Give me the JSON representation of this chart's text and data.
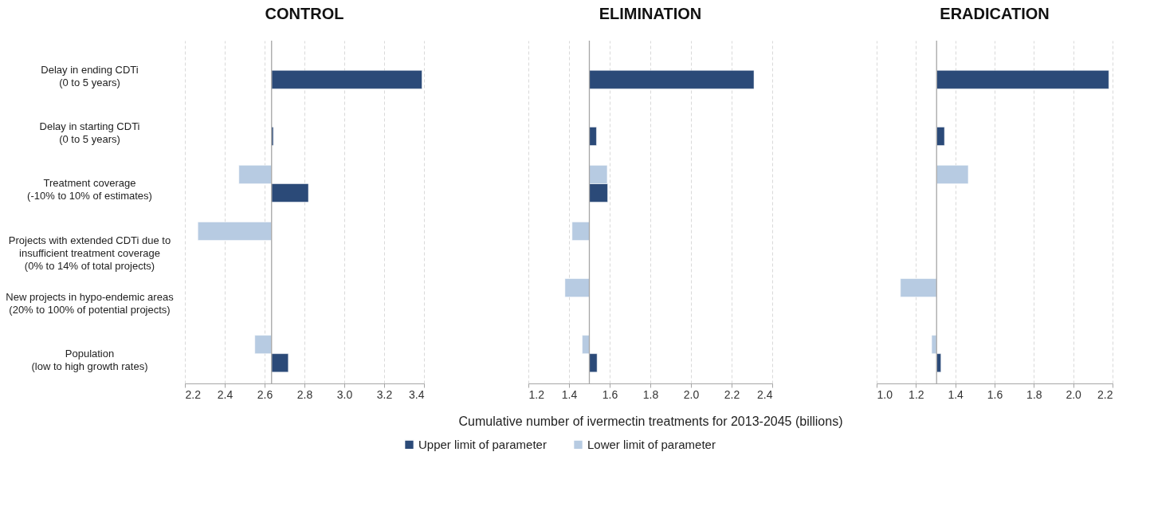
{
  "chart_data": [
    {
      "type": "bar",
      "orientation": "horizontal",
      "title": "CONTROL",
      "categories": [
        "Delay in ending CDTi\n(0 to 5 years)",
        "Delay in starting CDTi\n(0 to 5 years)",
        "Treatment coverage\n(-10% to 10% of estimates)",
        "Projects with extended CDTi due to\ninsufficient treatment coverage\n(0% to 14% of total projects)",
        "New projects in hypo-endemic areas\n(20% to 100% of potential projects)",
        "Population\n(low to high growth rates)"
      ],
      "series": [
        {
          "name": "Upper limit of parameter",
          "color": "#2b4a78",
          "values": [
            0.755,
            0.009,
            0.185,
            null,
            null,
            0.084
          ],
          "base": [
            2.635,
            2.635,
            2.635,
            null,
            null,
            2.635
          ]
        },
        {
          "name": "Lower limit of parameter",
          "color": "#b7cbe2",
          "values": [
            null,
            null,
            -0.164,
            -0.37,
            null,
            -0.084
          ],
          "base": [
            null,
            null,
            2.635,
            2.635,
            null,
            2.635
          ]
        }
      ],
      "xlim": [
        2.2,
        3.4
      ],
      "xticks": [
        {
          "value": 2.2,
          "label": "2.2"
        },
        {
          "value": 2.4,
          "label": "2.4"
        },
        {
          "value": 2.6,
          "label": "2.6"
        },
        {
          "value": 2.8,
          "label": "2.8"
        },
        {
          "value": 3.0,
          "label": "3.0"
        },
        {
          "value": 3.2,
          "label": "3.2"
        },
        {
          "value": 3.4,
          "label": "3.4"
        }
      ],
      "ref_lines": [
        {
          "axis": "x",
          "value": 2.635,
          "color": "#a6a6a6"
        }
      ],
      "grid": "x",
      "legend": "bottom"
    },
    {
      "type": "bar",
      "orientation": "horizontal",
      "title": "ELIMINATION",
      "xlabel": "Cumulative number of ivermectin treatments for 2013-2045 (billions)",
      "categories": [
        "Delay in ending CDTi\n(0 to 5 years)",
        "Delay in starting CDTi\n(0 to 5 years)",
        "Treatment coverage\n(-10% to 10% of estimates)",
        "Projects with extended CDTi due to\ninsufficient treatment coverage\n(0% to 14% of total projects)",
        "New projects in hypo-endemic areas\n(20% to 100% of potential projects)",
        "Population\n(low to high growth rates)"
      ],
      "series": [
        {
          "name": "Upper limit of parameter",
          "color": "#2b4a78",
          "values": [
            0.81,
            0.035,
            0.09,
            null,
            null,
            0.038
          ],
          "base": [
            1.5,
            1.5,
            1.5,
            null,
            null,
            1.5
          ]
        },
        {
          "name": "Lower limit of parameter",
          "color": "#b7cbe2",
          "values": [
            null,
            null,
            0.088,
            -0.085,
            -0.12,
            -0.035
          ],
          "base": [
            null,
            null,
            1.5,
            1.5,
            1.5,
            1.5
          ]
        }
      ],
      "xlim": [
        1.2,
        2.4
      ],
      "xticks": [
        {
          "value": 1.2,
          "label": "1.2"
        },
        {
          "value": 1.4,
          "label": "1.4"
        },
        {
          "value": 1.6,
          "label": "1.6"
        },
        {
          "value": 1.8,
          "label": "1.8"
        },
        {
          "value": 2.0,
          "label": "2.0"
        },
        {
          "value": 2.2,
          "label": "2.2"
        },
        {
          "value": 2.4,
          "label": "2.4"
        }
      ],
      "ref_lines": [
        {
          "axis": "x",
          "value": 1.5,
          "color": "#a6a6a6"
        }
      ],
      "grid": "x",
      "legend": "bottom",
      "tick_labels": "x"
    },
    {
      "type": "bar",
      "orientation": "horizontal",
      "title": "ERADICATION",
      "categories": [
        "Delay in ending CDTi\n(0 to 5 years)",
        "Delay in starting CDTi\n(0 to 5 years)",
        "Treatment coverage\n(-10% to 10% of estimates)",
        "Projects with extended CDTi due to\ninsufficient treatment coverage\n(0% to 14% of total projects)",
        "New projects in hypo-endemic areas\n(20% to 100% of potential projects)",
        "Population\n(low to high growth rates)"
      ],
      "series": [
        {
          "name": "Upper limit of parameter",
          "color": "#2b4a78",
          "values": [
            0.876,
            0.04,
            null,
            null,
            null,
            0.022
          ],
          "base": [
            1.305,
            1.305,
            null,
            null,
            null,
            1.305
          ]
        },
        {
          "name": "Lower limit of parameter",
          "color": "#b7cbe2",
          "values": [
            null,
            null,
            0.161,
            null,
            -0.184,
            -0.025
          ],
          "base": [
            null,
            null,
            1.305,
            null,
            1.305,
            1.305
          ]
        }
      ],
      "xlim": [
        1.0,
        2.2
      ],
      "xticks": [
        {
          "value": 1.0,
          "label": "1.0"
        },
        {
          "value": 1.2,
          "label": "1.2"
        },
        {
          "value": 1.4,
          "label": "1.4"
        },
        {
          "value": 1.6,
          "label": "1.6"
        },
        {
          "value": 1.8,
          "label": "1.8"
        },
        {
          "value": 2.0,
          "label": "2.0"
        },
        {
          "value": 2.2,
          "label": "2.2"
        }
      ],
      "ref_lines": [
        {
          "axis": "x",
          "value": 1.305,
          "color": "#a6a6a6"
        }
      ],
      "grid": "x",
      "legend": "bottom",
      "tick_labels": "x"
    }
  ]
}
